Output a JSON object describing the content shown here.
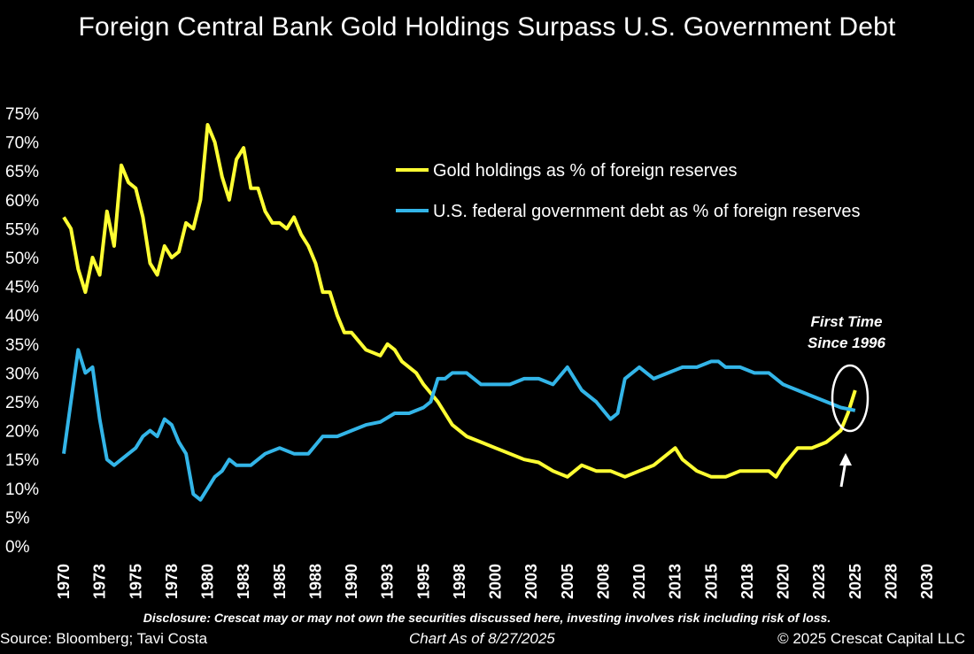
{
  "chart_data": {
    "type": "line",
    "title": "Foreign Central Bank Gold Holdings Surpass U.S. Government Debt",
    "ylim": [
      0,
      75
    ],
    "xlim": [
      1970,
      2030
    ],
    "y_ticks": [
      "75%",
      "70%",
      "65%",
      "60%",
      "55%",
      "50%",
      "45%",
      "40%",
      "35%",
      "30%",
      "25%",
      "20%",
      "15%",
      "10%",
      "5%",
      "0%"
    ],
    "y_tick_values": [
      75,
      70,
      65,
      60,
      55,
      50,
      45,
      40,
      35,
      30,
      25,
      20,
      15,
      10,
      5,
      0
    ],
    "x_ticks": [
      "1970",
      "1973",
      "1975",
      "1978",
      "1980",
      "1983",
      "1985",
      "1988",
      "1990",
      "1993",
      "1995",
      "1998",
      "2000",
      "2003",
      "2005",
      "2008",
      "2010",
      "2013",
      "2015",
      "2018",
      "2020",
      "2023",
      "2025",
      "2028",
      "2030"
    ],
    "x_tick_values": [
      1970,
      1972.5,
      1975,
      1977.5,
      1980,
      1982.5,
      1985,
      1987.5,
      1990,
      1992.5,
      1995,
      1997.5,
      2000,
      2002.5,
      2005,
      2007.5,
      2010,
      2012.5,
      2015,
      2017.5,
      2020,
      2022.5,
      2025,
      2027.5,
      2030
    ],
    "grid": false,
    "legend_position": "top-right",
    "series": [
      {
        "name": "Gold holdings as % of foreign reserves",
        "color": "#ffff33",
        "x": [
          1970,
          1970.5,
          1971,
          1971.5,
          1972,
          1972.5,
          1973,
          1973.5,
          1974,
          1974.5,
          1975,
          1975.5,
          1976,
          1976.5,
          1977,
          1977.5,
          1978,
          1978.5,
          1979,
          1979.5,
          1980,
          1980.5,
          1981,
          1981.5,
          1982,
          1982.5,
          1983,
          1983.5,
          1984,
          1984.5,
          1985,
          1985.5,
          1986,
          1986.5,
          1987,
          1987.5,
          1988,
          1988.5,
          1989,
          1989.5,
          1990,
          1991,
          1992,
          1992.5,
          1993,
          1993.5,
          1994,
          1994.5,
          1995,
          1996,
          1997,
          1998,
          1999,
          2000,
          2001,
          2002,
          2003,
          2004,
          2005,
          2006,
          2007,
          2008,
          2009,
          2010,
          2011,
          2012,
          2012.5,
          2013,
          2014,
          2015,
          2016,
          2017,
          2018,
          2019,
          2019.5,
          2020,
          2021,
          2022,
          2023,
          2023.5,
          2024,
          2024.5,
          2025
        ],
        "y": [
          57,
          55,
          48,
          44,
          50,
          47,
          58,
          52,
          66,
          63,
          62,
          57,
          49,
          47,
          52,
          50,
          51,
          56,
          55,
          60,
          73,
          70,
          64,
          60,
          67,
          69,
          62,
          62,
          58,
          56,
          56,
          55,
          57,
          54,
          52,
          49,
          44,
          44,
          40,
          37,
          37,
          34,
          33,
          35,
          34,
          32,
          31,
          30,
          28,
          25,
          21,
          19,
          18,
          17,
          16,
          15,
          14.5,
          13,
          12,
          14,
          13,
          13,
          12,
          13,
          14,
          16,
          17,
          15,
          13,
          12,
          12,
          13,
          13,
          13,
          12,
          14,
          17,
          17,
          18,
          19,
          20,
          23,
          27
        ]
      },
      {
        "name": "U.S. federal government debt as % of foreign reserves",
        "color": "#33b5e8",
        "x": [
          1970,
          1970.5,
          1971,
          1971.5,
          1972,
          1972.5,
          1973,
          1973.5,
          1974,
          1974.5,
          1975,
          1975.5,
          1976,
          1976.5,
          1977,
          1977.5,
          1978,
          1978.5,
          1979,
          1979.5,
          1980,
          1980.5,
          1981,
          1981.5,
          1982,
          1982.5,
          1983,
          1984,
          1985,
          1986,
          1987,
          1988,
          1989,
          1990,
          1991,
          1992,
          1993,
          1994,
          1995,
          1995.5,
          1996,
          1996.5,
          1997,
          1998,
          1999,
          2000,
          2001,
          2002,
          2003,
          2004,
          2005,
          2006,
          2007,
          2008,
          2008.5,
          2009,
          2010,
          2011,
          2012,
          2013,
          2014,
          2015,
          2015.5,
          2016,
          2017,
          2018,
          2019,
          2020,
          2021,
          2022,
          2023,
          2024,
          2025
        ],
        "y": [
          16,
          25,
          34,
          30,
          31,
          22,
          15,
          14,
          15,
          16,
          17,
          19,
          20,
          19,
          22,
          21,
          18,
          16,
          9,
          8,
          10,
          12,
          13,
          15,
          14,
          14,
          14,
          16,
          17,
          16,
          16,
          19,
          19,
          20,
          21,
          21.5,
          23,
          23,
          24,
          25,
          29,
          29,
          30,
          30,
          28,
          28,
          28,
          29,
          29,
          28,
          31,
          27,
          25,
          22,
          23,
          29,
          31,
          29,
          30,
          31,
          31,
          32,
          32,
          31,
          31,
          30,
          30,
          28,
          27,
          26,
          25,
          24,
          23.5
        ]
      }
    ],
    "annotations": {
      "callout_line1": "First Time",
      "callout_line2": "Since 1996"
    }
  },
  "footer": {
    "disclosure": "Disclosure: Crescat may or may not own the securities discussed here, investing involves risk including risk of loss.",
    "source": "Source: Bloomberg; Tavi Costa",
    "chart_as_of": "Chart As of 8/27/2025",
    "copyright": "© 2025 Crescat Capital LLC"
  }
}
